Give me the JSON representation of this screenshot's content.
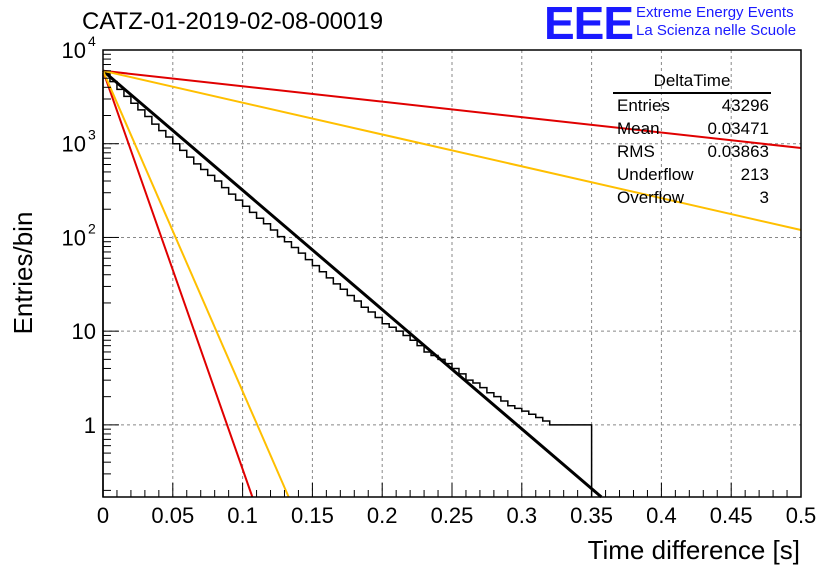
{
  "title": "CATZ-01-2019-02-08-00019",
  "logo": {
    "mark": "EEE",
    "line1": "Extreme Energy Events",
    "line2": "La Scienza nelle Scuole",
    "color": "#1a1aff"
  },
  "stats_box": {
    "title": "DeltaTime",
    "rows": [
      {
        "label": "Entries",
        "value": "43296"
      },
      {
        "label": "Mean",
        "value": "0.03471"
      },
      {
        "label": "RMS",
        "value": "0.03863"
      },
      {
        "label": "Underflow",
        "value": "213"
      },
      {
        "label": "Overflow",
        "value": "3"
      }
    ]
  },
  "chart_data": {
    "type": "line",
    "xlabel": "Time difference [s]",
    "ylabel": "Entries/bin",
    "xlim": [
      0,
      0.5
    ],
    "ylim": [
      0.17,
      10000
    ],
    "y_scale": "log",
    "grid": true,
    "x_ticks": [
      "0",
      "0.05",
      "0.1",
      "0.15",
      "0.2",
      "0.25",
      "0.3",
      "0.35",
      "0.4",
      "0.45",
      "0.5"
    ],
    "y_ticks": [
      {
        "value": 1,
        "label": "1"
      },
      {
        "value": 10,
        "label": "10"
      },
      {
        "value": 100,
        "label": "10",
        "exp": "2"
      },
      {
        "value": 1000,
        "label": "10",
        "exp": "3"
      },
      {
        "value": 10000,
        "label": "10",
        "exp": "4"
      }
    ],
    "histogram": {
      "bin_width": 0.005,
      "color": "#000000",
      "values": [
        5600,
        4600,
        3800,
        3200,
        2700,
        2300,
        1950,
        1620,
        1380,
        1180,
        1000,
        850,
        720,
        610,
        530,
        460,
        400,
        340,
        290,
        250,
        215,
        185,
        160,
        140,
        120,
        102,
        90,
        78,
        68,
        58,
        50,
        43,
        37,
        32,
        28,
        24,
        21,
        18,
        16,
        14,
        12,
        11,
        10,
        9,
        8,
        7,
        6,
        5.5,
        5,
        4.5,
        4,
        3.5,
        3,
        2.8,
        2.5,
        2.2,
        2,
        1.8,
        1.6,
        1.5,
        1.4,
        1.3,
        1.2,
        1.1,
        1,
        1,
        1,
        1,
        1,
        1
      ]
    },
    "series": [
      {
        "color": "#000000",
        "x": [
          0,
          0.357
        ],
        "y": [
          6000,
          0.17
        ]
      },
      {
        "color": "#e00000",
        "x": [
          0,
          0.107
        ],
        "y": [
          6000,
          0.17
        ]
      },
      {
        "color": "#ffbf00",
        "x": [
          0,
          0.133
        ],
        "y": [
          6000,
          0.17
        ]
      },
      {
        "color": "#e00000",
        "x": [
          0,
          0.5
        ],
        "y": [
          6000,
          900
        ]
      },
      {
        "color": "#ffbf00",
        "x": [
          0,
          0.5
        ],
        "y": [
          6000,
          120
        ]
      }
    ]
  }
}
